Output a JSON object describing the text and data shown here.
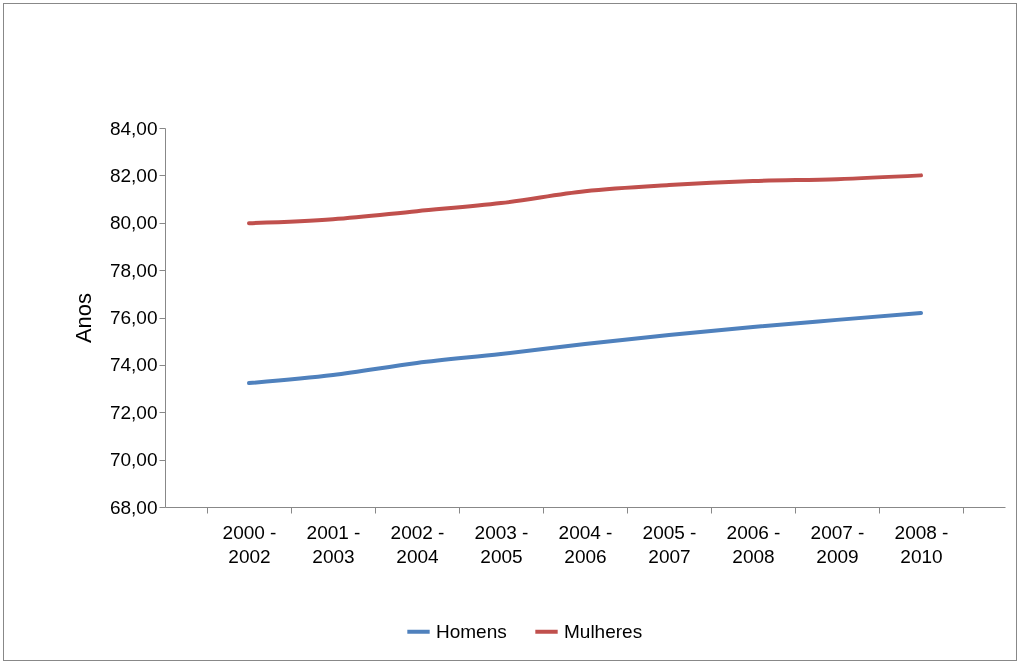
{
  "chart_data": {
    "type": "line",
    "ylabel": "Anos",
    "categories": [
      "2000 - 2002",
      "2001 - 2003",
      "2002 - 2004",
      "2003 - 2005",
      "2004 - 2006",
      "2005 - 2007",
      "2006 - 2008",
      "2007 - 2009",
      "2008 - 2010"
    ],
    "series": [
      {
        "name": "Homens",
        "color": "#4f81bd",
        "values": [
          73.23,
          73.57,
          74.08,
          74.46,
          74.88,
          75.26,
          75.6,
          75.9,
          76.19
        ]
      },
      {
        "name": "Mulheres",
        "color": "#c0504d",
        "values": [
          79.98,
          80.15,
          80.49,
          80.83,
          81.33,
          81.59,
          81.76,
          81.84,
          82.0
        ]
      }
    ],
    "ylim": [
      68,
      84
    ],
    "yticks": [
      {
        "value": 68,
        "label": "68,00"
      },
      {
        "value": 70,
        "label": "70,00"
      },
      {
        "value": 72,
        "label": "72,00"
      },
      {
        "value": 74,
        "label": "74,00"
      },
      {
        "value": 76,
        "label": "76,00"
      },
      {
        "value": 78,
        "label": "78,00"
      },
      {
        "value": 80,
        "label": "80,00"
      },
      {
        "value": 82,
        "label": "82,00"
      },
      {
        "value": 84,
        "label": "84,00"
      }
    ],
    "grid": false,
    "legend": "bottom",
    "marker": "none",
    "line_style": "solid"
  }
}
